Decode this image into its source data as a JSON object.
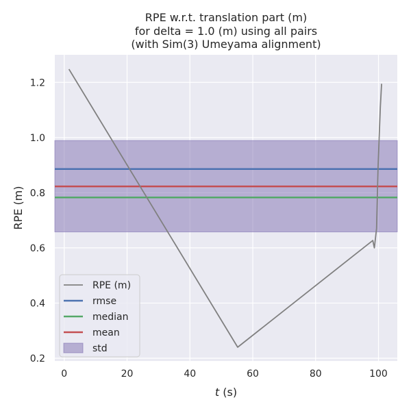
{
  "chart_data": {
    "type": "line",
    "title_lines": [
      "RPE w.r.t. translation part (m)",
      "for delta = 1.0 (m) using all pairs",
      "(with Sim(3) Umeyama alignment)"
    ],
    "xlabel_italic": "t",
    "xlabel_rest": " (s)",
    "ylabel": "RPE (m)",
    "xlim": [
      -3,
      106
    ],
    "ylim": [
      0.19,
      1.3
    ],
    "xticks": [
      0,
      20,
      40,
      60,
      80,
      100
    ],
    "yticks": [
      0.2,
      0.4,
      0.6,
      0.8,
      1.0,
      1.2
    ],
    "series": [
      {
        "name": "RPE (m)",
        "color": "#808080",
        "x": [
          1.5,
          55.2,
          98.2,
          98.7,
          99.4,
          99.9,
          100.3,
          100.6,
          101.0
        ],
        "y": [
          1.248,
          0.24,
          0.627,
          0.6,
          0.67,
          0.9,
          1.02,
          1.11,
          1.195
        ]
      }
    ],
    "stats": {
      "rmse": {
        "value": 0.886,
        "color": "#4c72b0"
      },
      "median": {
        "value": 0.783,
        "color": "#55a868"
      },
      "mean": {
        "value": 0.823,
        "color": "#c44e52"
      },
      "std": {
        "low": 0.658,
        "high": 0.989,
        "color": "#8172b2"
      }
    },
    "legend": {
      "position": "lower-left",
      "entries": [
        {
          "label": "RPE (m)",
          "kind": "line",
          "color": "#808080"
        },
        {
          "label": "rmse",
          "kind": "line",
          "color": "#4c72b0"
        },
        {
          "label": "median",
          "kind": "line",
          "color": "#55a868"
        },
        {
          "label": "mean",
          "kind": "line",
          "color": "#c44e52"
        },
        {
          "label": "std",
          "kind": "patch",
          "color": "#8172b2"
        }
      ]
    },
    "style": {
      "plot_background": "#eaeaf2",
      "grid_color": "#ffffff",
      "grid": true
    }
  }
}
